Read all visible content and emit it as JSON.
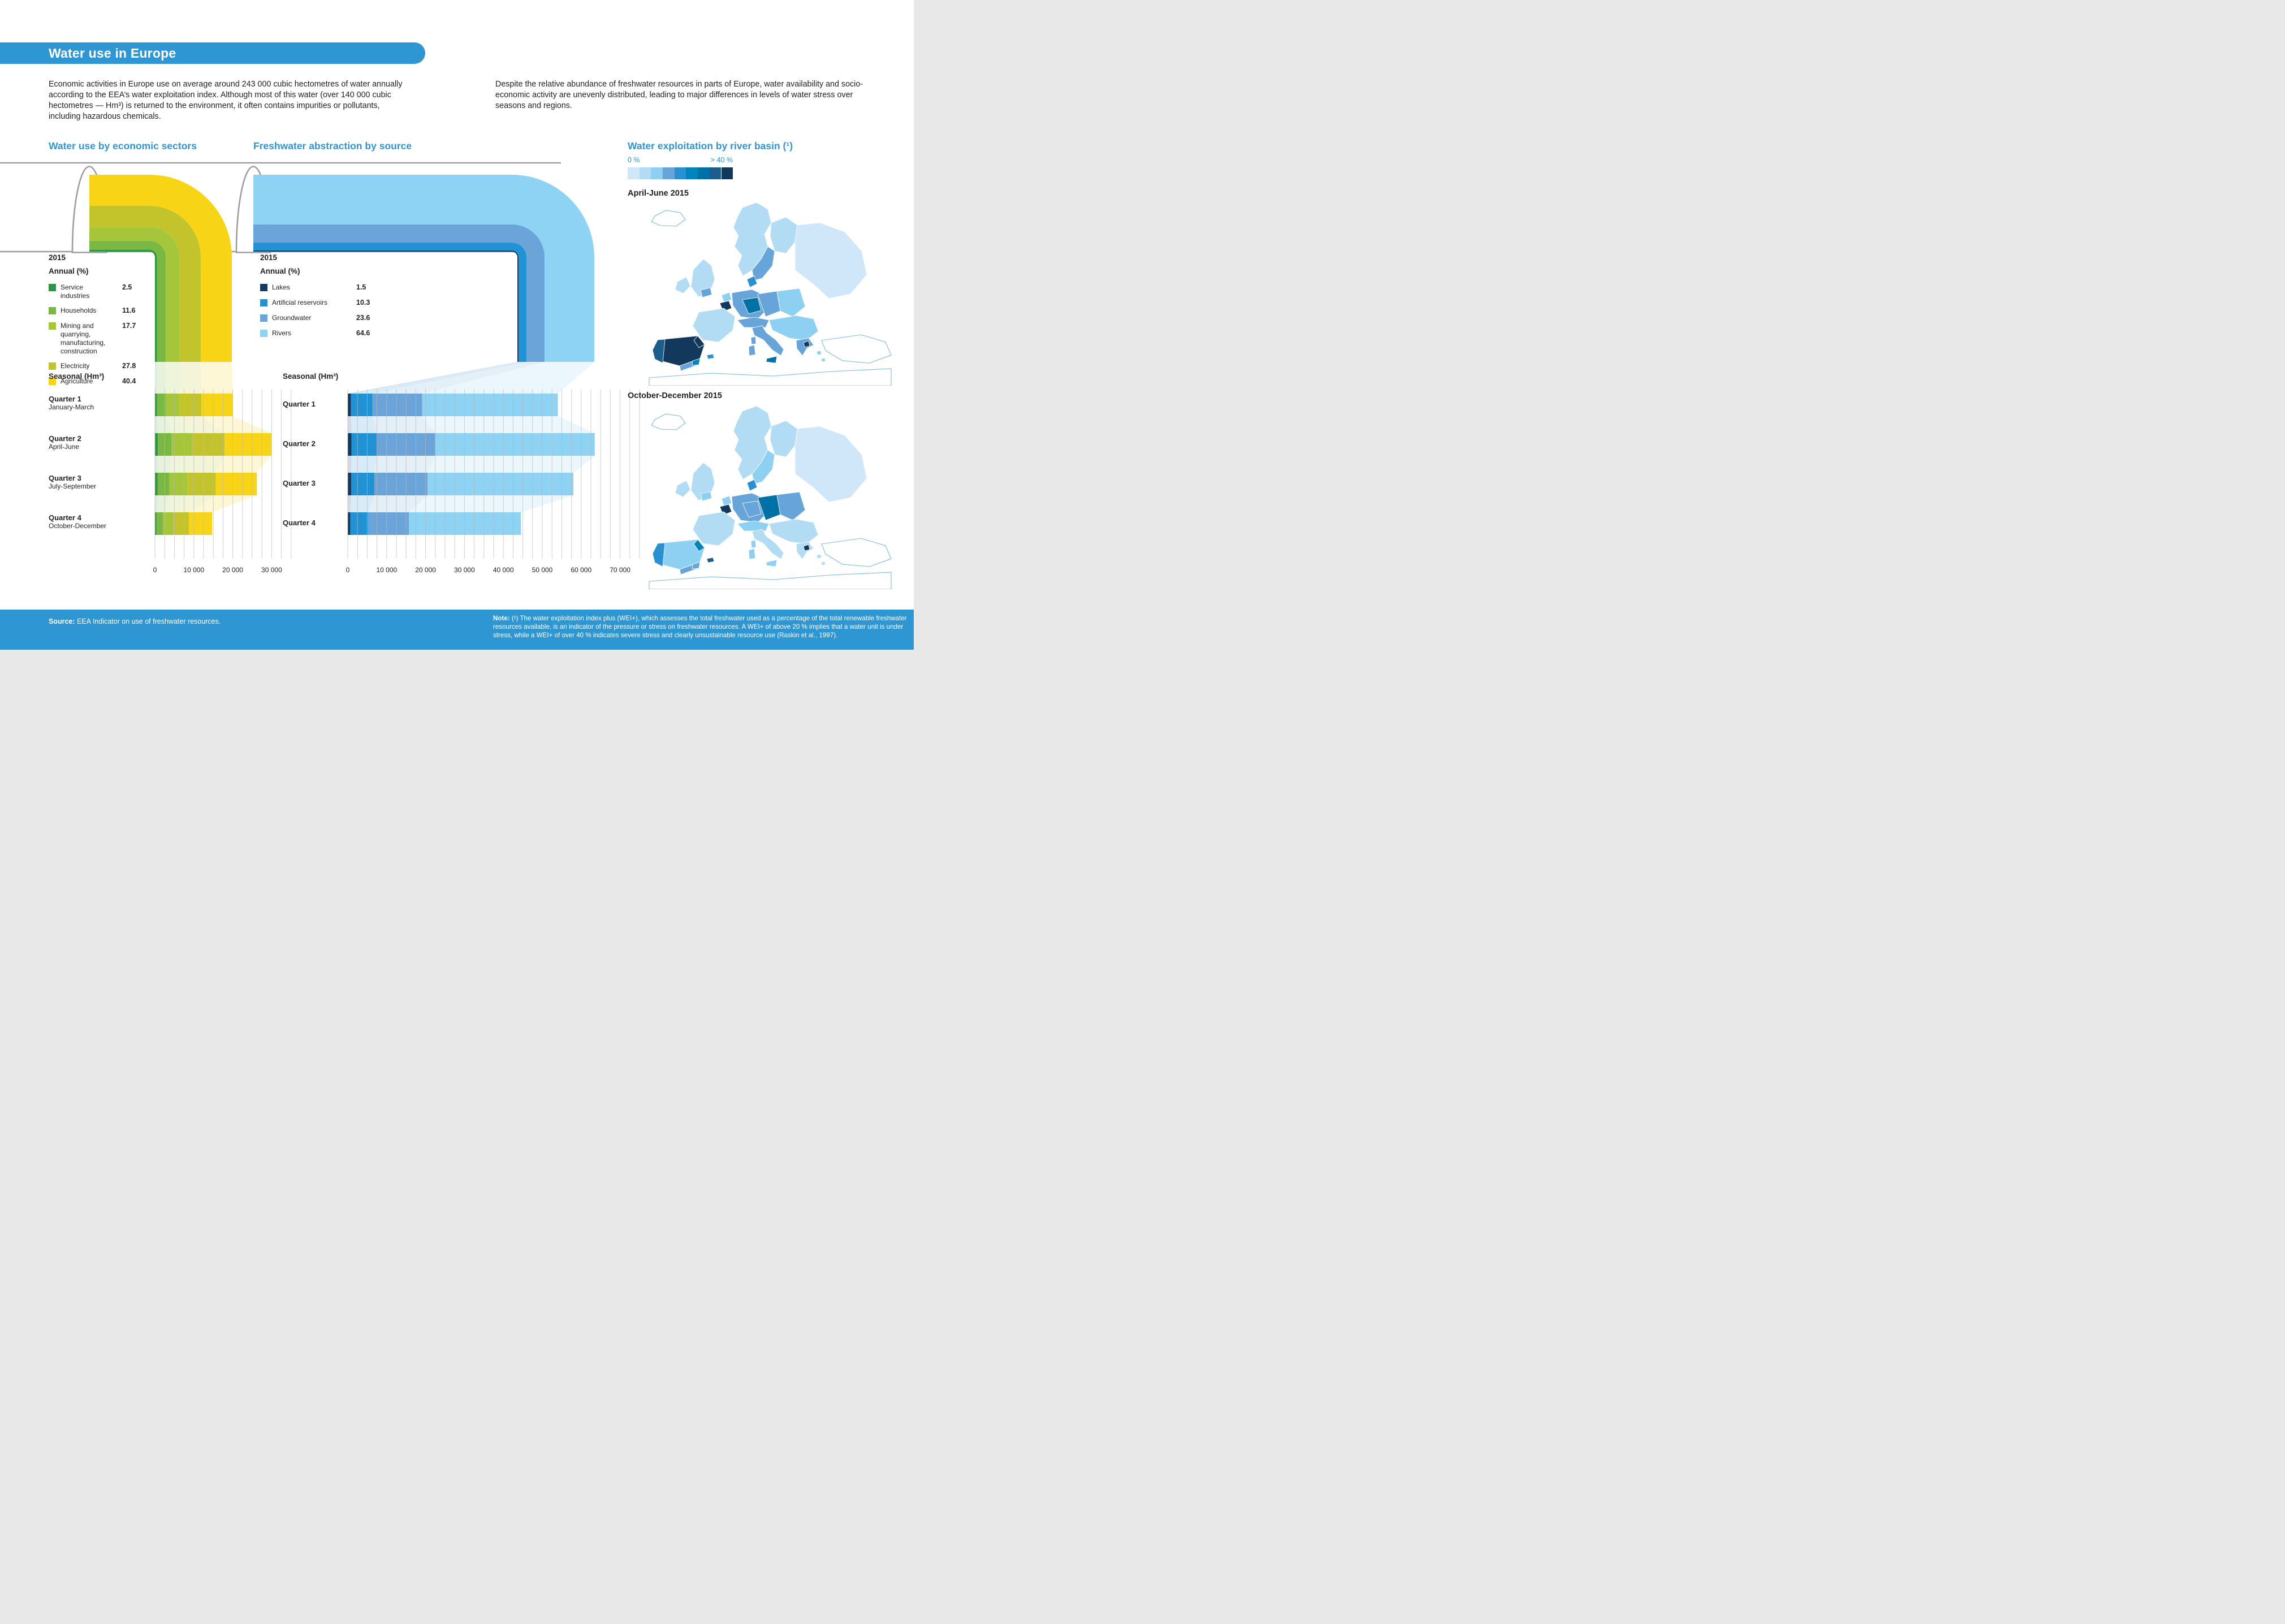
{
  "header": {
    "title": "Water use in Europe",
    "intro_left": "Economic activities in Europe use on average around 243 000 cubic hectometres of water annually according to the EEA’s water exploitation index. Although most of this water (over 140 000 cubic hectometres — Hm³) is returned to the environment, it often contains impurities or pollutants, including hazardous chemicals.",
    "intro_right": "Despite the relative abundance of freshwater resources in parts of Europe, water availability and socio-economic activity are unevenly distributed, leading to major differences in levels of water stress over seasons and regions."
  },
  "colors": {
    "brand_blue": "#2e96d3",
    "wall_gray": "#9e9e9e",
    "gridline": "#b9b9b9",
    "sector_colors": [
      "#339344",
      "#78b843",
      "#a5c53a",
      "#c3c42c",
      "#f7d516"
    ],
    "source_colors": [
      "#16395e",
      "#2193d4",
      "#6aa4d9",
      "#8ed2f4"
    ],
    "basin_scale": [
      "#cfe7f8",
      "#b2dbf4",
      "#8ed0f2",
      "#67a4d9",
      "#2b90d2",
      "#0084bd",
      "#0071a7",
      "#1c5d8b",
      "#12395c"
    ]
  },
  "chart_data": [
    {
      "id": "water-use-by-economic-sectors",
      "type": "bar",
      "title": "Water use by economic sectors",
      "year": "2015",
      "annual_unit": "Annual (%)",
      "series": [
        {
          "name": "Service industries",
          "annual_pct": 2.5
        },
        {
          "name": "Households",
          "annual_pct": 11.6
        },
        {
          "name": "Mining and quarrying, manufacturing, construction",
          "annual_pct": 17.7
        },
        {
          "name": "Electricity",
          "annual_pct": 27.8
        },
        {
          "name": "Agriculture",
          "annual_pct": 40.4
        }
      ],
      "seasonal_unit": "Seasonal (Hm³)",
      "categories": [
        "Quarter 1",
        "Quarter 2",
        "Quarter 3",
        "Quarter 4"
      ],
      "subcategories": [
        "January-March",
        "April-June",
        "July-September",
        "October-December"
      ],
      "values_hm3": [
        20000,
        30000,
        26200,
        14700
      ],
      "xlabel": "",
      "ylabel": "",
      "xtick_labels": [
        "0",
        "10 000",
        "20 000",
        "30 000"
      ],
      "xticks": [
        0,
        10000,
        20000,
        30000
      ],
      "xlim": [
        0,
        35000
      ],
      "grid": "on"
    },
    {
      "id": "freshwater-abstraction-by-source",
      "type": "bar",
      "title": "Freshwater abstraction by source",
      "year": "2015",
      "annual_unit": "Annual (%)",
      "series": [
        {
          "name": "Lakes",
          "annual_pct": 1.5
        },
        {
          "name": "Artificial reservoirs",
          "annual_pct": 10.3
        },
        {
          "name": "Groundwater",
          "annual_pct": 23.6
        },
        {
          "name": "Rivers",
          "annual_pct": 64.6
        }
      ],
      "seasonal_unit": "Seasonal (Hm³)",
      "categories": [
        "Quarter 1",
        "Quarter 2",
        "Quarter 3",
        "Quarter 4"
      ],
      "subcategories": [
        "",
        "",
        "",
        ""
      ],
      "values_hm3": [
        54000,
        63500,
        58000,
        44500
      ],
      "xlabel": "",
      "ylabel": "",
      "xtick_labels": [
        "0",
        "10 000",
        "20 000",
        "30 000",
        "40 000",
        "50 000",
        "60 000",
        "70 000"
      ],
      "xticks": [
        0,
        10000,
        20000,
        30000,
        40000,
        50000,
        60000,
        70000
      ],
      "xlim": [
        0,
        75000
      ],
      "grid": "on"
    },
    {
      "id": "water-exploitation-by-river-basin",
      "type": "heatmap",
      "title": "Water exploitation by river basin (¹)",
      "legend": {
        "min_label": "0 %",
        "max_label": "> 40 %",
        "levels": 9,
        "position": "top"
      },
      "maps": [
        {
          "label": "April-June 2015",
          "region_levels": {
            "iceland": -1,
            "norway_sweden": 1,
            "sweden_east": 3,
            "finland": 1,
            "eastern": 0,
            "denmark": 4,
            "uk": 1,
            "uk_south": 3,
            "ireland": 1,
            "netherlands": 2,
            "belgium": 8,
            "germany_west": 3,
            "germany_center": 6,
            "germany_east": 3,
            "poland": 2,
            "france": 1,
            "alps": 3,
            "iberia_main": 8,
            "portugal": 7,
            "iberia_south": 3,
            "iberia_se": 5,
            "catalonia": 8,
            "balearics": 4,
            "italy": 3,
            "sicily": 6,
            "sardinia": 3,
            "corsica": 3,
            "balkans": 2,
            "greece": 3,
            "greece_spot": 8,
            "aegean1": 2,
            "aegean2": 2,
            "turkey": -1,
            "africa": -1
          }
        },
        {
          "label": "October-December 2015",
          "region_levels": {
            "iceland": -1,
            "norway_sweden": 1,
            "sweden_east": 2,
            "finland": 1,
            "eastern": 0,
            "denmark": 4,
            "uk": 1,
            "uk_south": 2,
            "ireland": 1,
            "netherlands": 2,
            "belgium": 8,
            "germany_west": 3,
            "germany_center": 3,
            "germany_east": 6,
            "poland": 3,
            "france": 1,
            "alps": 2,
            "iberia_main": 2,
            "portugal": 4,
            "iberia_south": 3,
            "iberia_se": 3,
            "catalonia": 5,
            "balearics": 7,
            "italy": 1,
            "sicily": 2,
            "sardinia": 2,
            "corsica": 2,
            "balkans": 1,
            "greece": 1,
            "greece_spot": 8,
            "aegean1": 1,
            "aegean2": 1,
            "turkey": -1,
            "africa": -1
          }
        }
      ]
    }
  ],
  "footer": {
    "source_label": "Source:",
    "source_text": " EEA Indicator on use of freshwater resources.",
    "note_label": "Note:",
    "note_text": " (¹) The water exploitation index plus (WEI+), which assesses the total freshwater used as a percentage of the total renewable freshwater resources available, is an indicator of the pressure or stress on freshwater resources. A WEI+ of above 20 % implies that a water unit is under stress, while a WEI+ of over 40 % indicates severe stress and clearly unsustainable resource use (Raskin et al., 1997)."
  }
}
